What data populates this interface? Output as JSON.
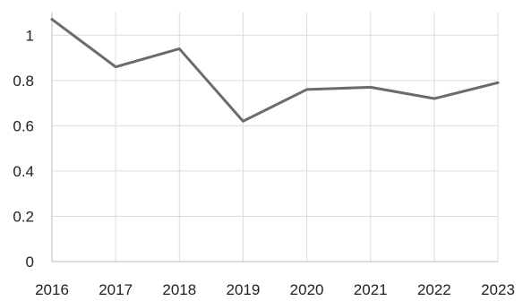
{
  "chart_data": {
    "type": "line",
    "title": "",
    "xlabel": "",
    "ylabel": "",
    "x": [
      "2016",
      "2017",
      "2018",
      "2019",
      "2020",
      "2021",
      "2022",
      "2023"
    ],
    "series": [
      {
        "values": [
          1.07,
          0.86,
          0.94,
          0.62,
          0.76,
          0.77,
          0.72,
          0.79
        ]
      }
    ],
    "ylim": [
      0,
      1.1
    ],
    "yticks": [
      "0",
      "0.2",
      "0.4",
      "0.6",
      "0.8",
      "1"
    ],
    "grid": true,
    "legend": "none",
    "colors": {
      "line": "#6b6b6b",
      "grid": "#dcdcdc"
    }
  }
}
